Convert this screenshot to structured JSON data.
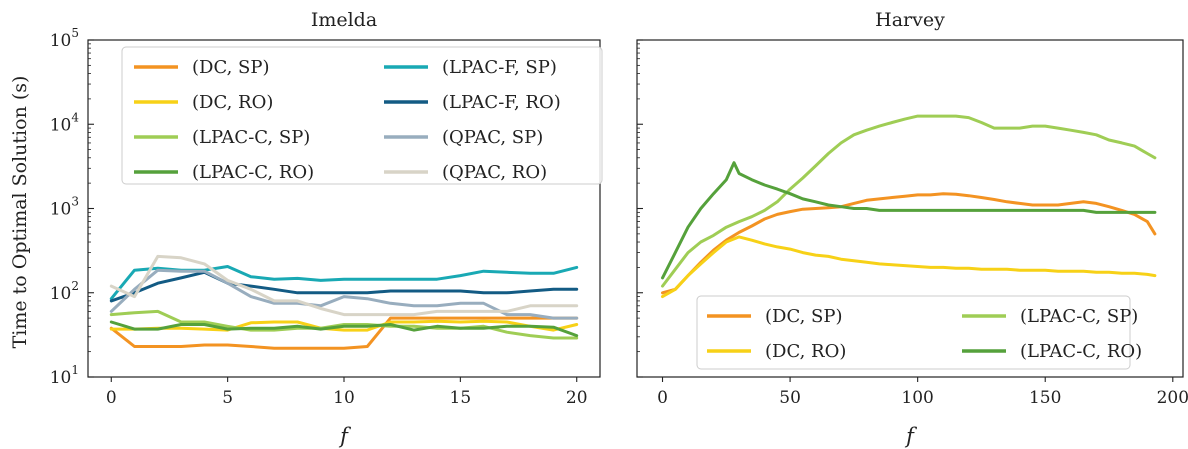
{
  "figure": {
    "ylabel": "Time to Optimal Solution (s)",
    "yticks": [
      {
        "value": 10,
        "label": "10",
        "exp": "1"
      },
      {
        "value": 100,
        "label": "10",
        "exp": "2"
      },
      {
        "value": 1000,
        "label": "10",
        "exp": "3"
      },
      {
        "value": 10000,
        "label": "10",
        "exp": "4"
      },
      {
        "value": 100000,
        "label": "10",
        "exp": "5"
      }
    ]
  },
  "colors": {
    "(DC, SP)": "#f39322",
    "(DC, RO)": "#f7d117",
    "(LPAC-C, SP)": "#9fcd55",
    "(LPAC-C, RO)": "#55a13b",
    "(LPAC-F, SP)": "#19a9b4",
    "(LPAC-F, RO)": "#135b84",
    "(QPAC, SP)": "#98adbe",
    "(QPAC, RO)": "#d8d4c7"
  },
  "chart_data": [
    {
      "type": "line",
      "title": "Imelda",
      "xlabel": "f",
      "ylabel": "Time to Optimal Solution (s)",
      "yscale": "log",
      "xlim": [
        -1,
        21
      ],
      "ylim": [
        10,
        100000
      ],
      "xticks": [
        0,
        5,
        10,
        15,
        20
      ],
      "legend": {
        "position": "upper-left",
        "columns": 2
      },
      "x": [
        0,
        1,
        2,
        3,
        4,
        5,
        6,
        7,
        8,
        9,
        10,
        11,
        12,
        13,
        14,
        15,
        16,
        17,
        18,
        19,
        20
      ],
      "series": [
        {
          "name": "(DC, SP)",
          "values": [
            38,
            23,
            23,
            23,
            24,
            24,
            23,
            22,
            22,
            22,
            22,
            23,
            50,
            50,
            50,
            50,
            50,
            50,
            50,
            50,
            50
          ]
        },
        {
          "name": "(DC, RO)",
          "values": [
            37,
            37,
            38,
            38,
            37,
            36,
            44,
            45,
            45,
            38,
            36,
            36,
            45,
            45,
            46,
            45,
            46,
            45,
            40,
            36,
            42
          ]
        },
        {
          "name": "(LPAC-C, SP)",
          "values": [
            55,
            58,
            60,
            45,
            45,
            40,
            36,
            36,
            38,
            38,
            42,
            42,
            40,
            40,
            38,
            38,
            40,
            34,
            31,
            29,
            29
          ]
        },
        {
          "name": "(LPAC-C, RO)",
          "values": [
            45,
            37,
            37,
            42,
            42,
            37,
            38,
            38,
            40,
            37,
            40,
            40,
            42,
            36,
            40,
            38,
            38,
            40,
            40,
            39,
            31
          ]
        },
        {
          "name": "(LPAC-F, SP)",
          "values": [
            85,
            185,
            195,
            185,
            185,
            205,
            155,
            145,
            148,
            140,
            145,
            145,
            145,
            145,
            145,
            160,
            180,
            175,
            170,
            170,
            200
          ]
        },
        {
          "name": "(LPAC-F, RO)",
          "values": [
            80,
            100,
            130,
            150,
            175,
            130,
            120,
            110,
            100,
            100,
            100,
            100,
            105,
            105,
            105,
            105,
            100,
            100,
            105,
            110,
            110
          ]
        },
        {
          "name": "(QPAC, SP)",
          "values": [
            60,
            110,
            185,
            180,
            180,
            130,
            90,
            75,
            75,
            70,
            90,
            85,
            75,
            70,
            70,
            75,
            75,
            55,
            55,
            50,
            50
          ]
        },
        {
          "name": "(QPAC, RO)",
          "values": [
            120,
            90,
            270,
            260,
            220,
            140,
            110,
            80,
            80,
            65,
            55,
            55,
            55,
            55,
            60,
            60,
            60,
            60,
            70,
            70,
            70
          ]
        }
      ]
    },
    {
      "type": "line",
      "title": "Harvey",
      "xlabel": "f",
      "yscale": "log",
      "xlim": [
        -10,
        204
      ],
      "ylim": [
        10,
        100000
      ],
      "xticks": [
        0,
        50,
        100,
        150,
        200
      ],
      "legend": {
        "position": "lower-center",
        "columns": 2
      },
      "series": [
        {
          "name": "(DC, SP)",
          "points": [
            [
              0,
              100
            ],
            [
              5,
              110
            ],
            [
              10,
              160
            ],
            [
              15,
              230
            ],
            [
              20,
              320
            ],
            [
              25,
              420
            ],
            [
              30,
              520
            ],
            [
              35,
              620
            ],
            [
              40,
              750
            ],
            [
              45,
              850
            ],
            [
              50,
              920
            ],
            [
              55,
              980
            ],
            [
              60,
              1000
            ],
            [
              65,
              1020
            ],
            [
              70,
              1050
            ],
            [
              75,
              1150
            ],
            [
              80,
              1250
            ],
            [
              85,
              1300
            ],
            [
              90,
              1350
            ],
            [
              95,
              1400
            ],
            [
              100,
              1450
            ],
            [
              105,
              1450
            ],
            [
              110,
              1500
            ],
            [
              115,
              1480
            ],
            [
              120,
              1420
            ],
            [
              125,
              1350
            ],
            [
              130,
              1280
            ],
            [
              135,
              1200
            ],
            [
              140,
              1150
            ],
            [
              145,
              1100
            ],
            [
              150,
              1100
            ],
            [
              155,
              1100
            ],
            [
              160,
              1150
            ],
            [
              165,
              1200
            ],
            [
              170,
              1150
            ],
            [
              175,
              1050
            ],
            [
              180,
              950
            ],
            [
              185,
              850
            ],
            [
              190,
              700
            ],
            [
              193,
              500
            ]
          ]
        },
        {
          "name": "(DC, RO)",
          "points": [
            [
              0,
              90
            ],
            [
              5,
              110
            ],
            [
              10,
              160
            ],
            [
              15,
              220
            ],
            [
              20,
              300
            ],
            [
              25,
              400
            ],
            [
              30,
              460
            ],
            [
              35,
              420
            ],
            [
              40,
              380
            ],
            [
              45,
              350
            ],
            [
              50,
              330
            ],
            [
              55,
              300
            ],
            [
              60,
              280
            ],
            [
              65,
              270
            ],
            [
              70,
              250
            ],
            [
              75,
              240
            ],
            [
              80,
              230
            ],
            [
              85,
              220
            ],
            [
              90,
              215
            ],
            [
              95,
              210
            ],
            [
              100,
              205
            ],
            [
              105,
              200
            ],
            [
              110,
              200
            ],
            [
              115,
              195
            ],
            [
              120,
              195
            ],
            [
              125,
              190
            ],
            [
              130,
              190
            ],
            [
              135,
              190
            ],
            [
              140,
              185
            ],
            [
              145,
              185
            ],
            [
              150,
              185
            ],
            [
              155,
              180
            ],
            [
              160,
              180
            ],
            [
              165,
              180
            ],
            [
              170,
              175
            ],
            [
              175,
              175
            ],
            [
              180,
              170
            ],
            [
              185,
              170
            ],
            [
              190,
              165
            ],
            [
              193,
              160
            ]
          ]
        },
        {
          "name": "(LPAC-C, SP)",
          "points": [
            [
              0,
              120
            ],
            [
              5,
              190
            ],
            [
              10,
              300
            ],
            [
              15,
              400
            ],
            [
              20,
              480
            ],
            [
              25,
              600
            ],
            [
              30,
              700
            ],
            [
              35,
              800
            ],
            [
              40,
              950
            ],
            [
              45,
              1200
            ],
            [
              50,
              1700
            ],
            [
              55,
              2300
            ],
            [
              60,
              3200
            ],
            [
              65,
              4500
            ],
            [
              70,
              6000
            ],
            [
              75,
              7500
            ],
            [
              80,
              8500
            ],
            [
              85,
              9500
            ],
            [
              90,
              10500
            ],
            [
              95,
              11500
            ],
            [
              100,
              12500
            ],
            [
              105,
              12500
            ],
            [
              110,
              12500
            ],
            [
              115,
              12500
            ],
            [
              120,
              12000
            ],
            [
              125,
              10500
            ],
            [
              130,
              9000
            ],
            [
              135,
              9000
            ],
            [
              140,
              9000
            ],
            [
              145,
              9500
            ],
            [
              150,
              9500
            ],
            [
              155,
              9000
            ],
            [
              160,
              8500
            ],
            [
              165,
              8000
            ],
            [
              170,
              7500
            ],
            [
              175,
              6500
            ],
            [
              180,
              6000
            ],
            [
              185,
              5500
            ],
            [
              190,
              4500
            ],
            [
              193,
              4000
            ]
          ]
        },
        {
          "name": "(LPAC-C, RO)",
          "points": [
            [
              0,
              150
            ],
            [
              5,
              300
            ],
            [
              10,
              600
            ],
            [
              15,
              1000
            ],
            [
              20,
              1500
            ],
            [
              25,
              2200
            ],
            [
              28,
              3500
            ],
            [
              30,
              2600
            ],
            [
              35,
              2200
            ],
            [
              40,
              1900
            ],
            [
              45,
              1700
            ],
            [
              50,
              1500
            ],
            [
              55,
              1300
            ],
            [
              60,
              1200
            ],
            [
              65,
              1100
            ],
            [
              70,
              1050
            ],
            [
              75,
              1000
            ],
            [
              80,
              1000
            ],
            [
              85,
              950
            ],
            [
              90,
              950
            ],
            [
              95,
              950
            ],
            [
              100,
              950
            ],
            [
              105,
              950
            ],
            [
              110,
              950
            ],
            [
              115,
              950
            ],
            [
              120,
              950
            ],
            [
              125,
              950
            ],
            [
              130,
              950
            ],
            [
              135,
              950
            ],
            [
              140,
              950
            ],
            [
              145,
              950
            ],
            [
              150,
              950
            ],
            [
              155,
              950
            ],
            [
              160,
              950
            ],
            [
              165,
              950
            ],
            [
              170,
              900
            ],
            [
              175,
              900
            ],
            [
              180,
              900
            ],
            [
              185,
              900
            ],
            [
              190,
              900
            ],
            [
              193,
              900
            ]
          ]
        }
      ]
    }
  ]
}
